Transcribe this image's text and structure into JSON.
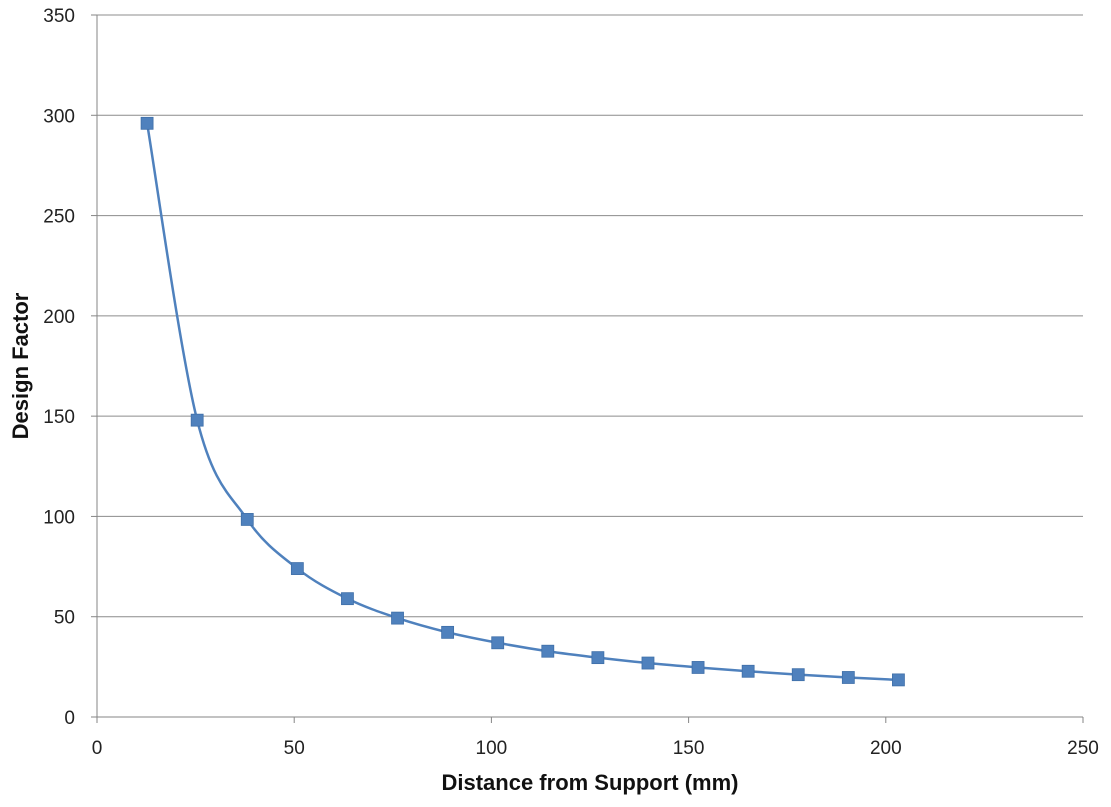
{
  "chart_data": {
    "type": "scatter",
    "title": "",
    "xlabel": "Distance from Support (mm)",
    "ylabel": "Design Factor",
    "xlim": [
      0,
      250
    ],
    "ylim": [
      0,
      350
    ],
    "x_ticks": [
      0,
      50,
      100,
      150,
      200,
      250
    ],
    "y_ticks": [
      0,
      50,
      100,
      150,
      200,
      250,
      300,
      350
    ],
    "grid": "horizontal",
    "legend": "none",
    "marker": "square",
    "smooth_line": true,
    "series": [
      {
        "color": "#4f81bd",
        "x": [
          12.7,
          25.4,
          38.1,
          50.8,
          63.5,
          76.2,
          88.9,
          101.6,
          114.3,
          127.0,
          139.7,
          152.4,
          165.1,
          177.8,
          190.5,
          203.2
        ],
        "y": [
          296,
          148,
          98.5,
          74,
          59,
          49.3,
          42.2,
          37,
          32.8,
          29.6,
          26.9,
          24.7,
          22.8,
          21.1,
          19.7,
          18.5
        ]
      }
    ]
  }
}
